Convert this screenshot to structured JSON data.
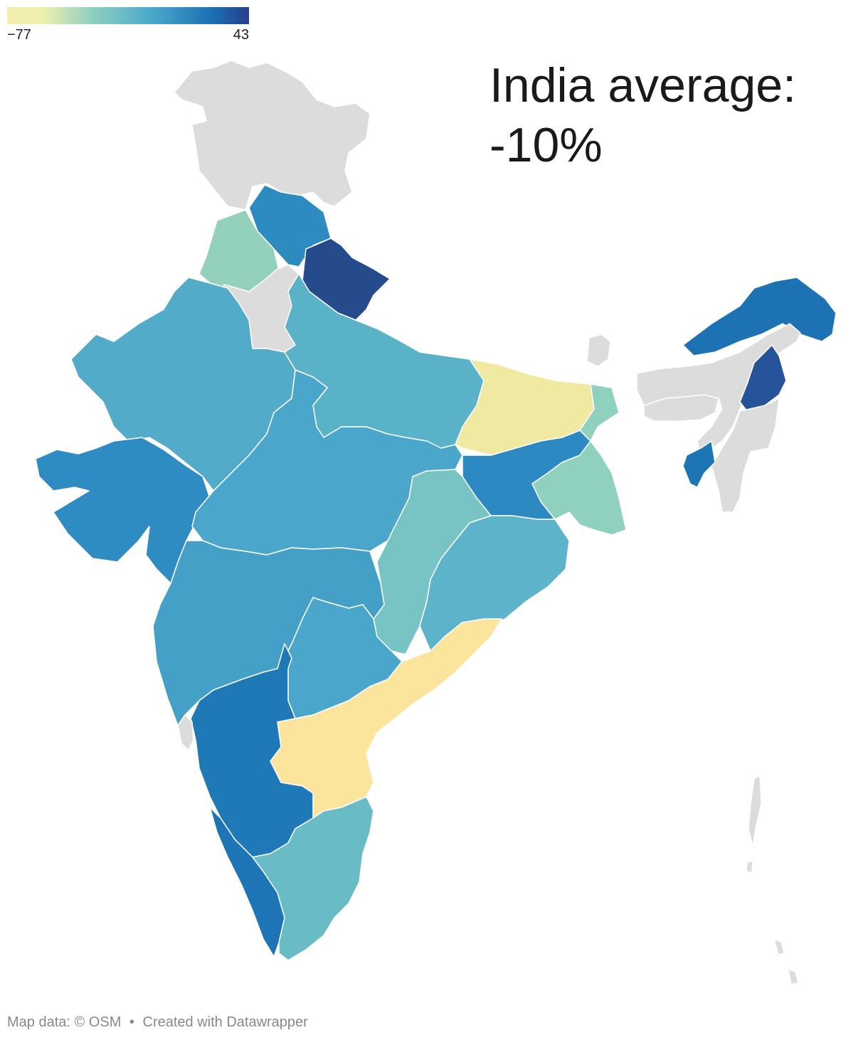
{
  "legend": {
    "min_label": "−77",
    "max_label": "43",
    "min": -77,
    "max": 43,
    "colors": [
      "#f4ecb0",
      "#8fd0c0",
      "#4aa8cc",
      "#1c6fb2",
      "#253f8c"
    ]
  },
  "headline": {
    "line1": "India average:",
    "line2": "-10%"
  },
  "credits": {
    "map_data": "Map data: © OSM",
    "separator": "•",
    "created_with": "Created with Datawrapper"
  },
  "map": {
    "no_data_color": "#dcdcdc",
    "regions": [
      {
        "name": "Jammu & Kashmir / Ladakh",
        "color": "#dcdcdc"
      },
      {
        "name": "Himachal Pradesh",
        "color": "#2e8bc0"
      },
      {
        "name": "Punjab",
        "color": "#94d1bd"
      },
      {
        "name": "Haryana / Delhi",
        "color": "#dcdcdc"
      },
      {
        "name": "Uttarakhand",
        "color": "#264b8c"
      },
      {
        "name": "Rajasthan",
        "color": "#52abc9"
      },
      {
        "name": "Uttar Pradesh",
        "color": "#5ab2c8"
      },
      {
        "name": "Bihar",
        "color": "#f0e9a2"
      },
      {
        "name": "Gujarat",
        "color": "#2f8cc2"
      },
      {
        "name": "Madhya Pradesh",
        "color": "#4aa6ca"
      },
      {
        "name": "Jharkhand",
        "color": "#2d89c1"
      },
      {
        "name": "West Bengal",
        "color": "#8fd0bf"
      },
      {
        "name": "Chhattisgarh",
        "color": "#78c4c4"
      },
      {
        "name": "Odisha",
        "color": "#5db3c9"
      },
      {
        "name": "Maharashtra",
        "color": "#45a0c8"
      },
      {
        "name": "Telangana",
        "color": "#4aa6ca"
      },
      {
        "name": "Andhra Pradesh",
        "color": "#fbe49c"
      },
      {
        "name": "Karnataka",
        "color": "#1f79b6"
      },
      {
        "name": "Kerala",
        "color": "#1d75b5"
      },
      {
        "name": "Tamil Nadu",
        "color": "#69bcc6"
      },
      {
        "name": "Goa",
        "color": "#dcdcdc"
      },
      {
        "name": "Sikkim",
        "color": "#dcdcdc"
      },
      {
        "name": "Assam",
        "color": "#1d72b4"
      },
      {
        "name": "Arunachal Pradesh",
        "color": "#dcdcdc"
      },
      {
        "name": "Nagaland",
        "color": "#26539a"
      },
      {
        "name": "Meghalaya",
        "color": "#dcdcdc"
      },
      {
        "name": "Manipur / Mizoram",
        "color": "#dcdcdc"
      },
      {
        "name": "Tripura",
        "color": "#1d75b5"
      },
      {
        "name": "Andaman & Nicobar",
        "color": "#dcdcdc"
      }
    ]
  }
}
